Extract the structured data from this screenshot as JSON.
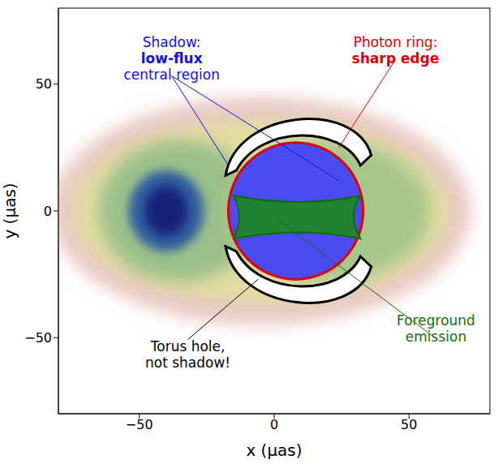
{
  "chart_data": {
    "type": "image",
    "xlabel": "x (μas)",
    "ylabel": "y (μas)",
    "xlim": [
      -80,
      80
    ],
    "ylim": [
      -80,
      80
    ],
    "xticks": [
      {
        "value": -50,
        "label": "−50"
      },
      0,
      50
    ],
    "yticks": [
      {
        "value": -50,
        "label": "−50"
      },
      0,
      50
    ],
    "tick_labels": true,
    "annotations": [
      {
        "text": [
          "Shadow:",
          "low-flux",
          "central region"
        ],
        "color": "blue"
      },
      {
        "text": [
          "Photon ring:",
          "sharp edge"
        ],
        "color": "red"
      },
      {
        "text": [
          "Torus hole,",
          "not shadow!"
        ],
        "color": "black"
      },
      {
        "text": [
          "Foreground",
          "emission"
        ],
        "color": "green"
      }
    ]
  }
}
